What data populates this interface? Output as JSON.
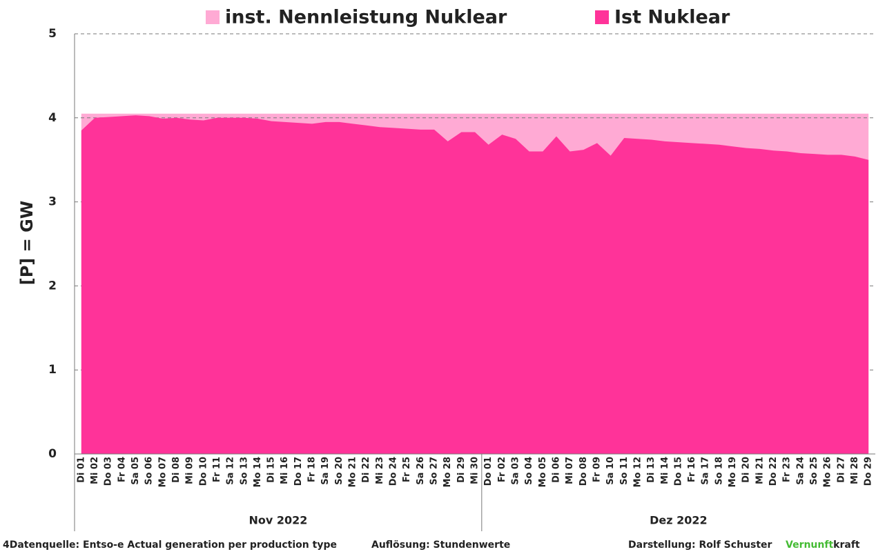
{
  "chart_data": {
    "type": "area",
    "y_label": "[P]  =  GW",
    "categories": [
      "Di 01",
      "Mi 02",
      "Do 03",
      "Fr 04",
      "Sa 05",
      "So 06",
      "Mo 07",
      "Di 08",
      "Mi 09",
      "Do 10",
      "Fr 11",
      "Sa 12",
      "So 13",
      "Mo 14",
      "Di 15",
      "Mi 16",
      "Do 17",
      "Fr 18",
      "Sa 19",
      "So 20",
      "Mo 21",
      "Di 22",
      "Mi 23",
      "Do 24",
      "Fr 25",
      "Sa 26",
      "So 27",
      "Mo 28",
      "Di 29",
      "Mi 30",
      "Do 01",
      "Fr 02",
      "Sa 03",
      "So 04",
      "Mo 05",
      "Di 06",
      "Mi 07",
      "Do 08",
      "Fr 09",
      "Sa 10",
      "So 11",
      "Mo 12",
      "Di 13",
      "Mi 14",
      "Do 15",
      "Fr 16",
      "Sa 17",
      "So 18",
      "Mo 19",
      "Di 20",
      "Mi 21",
      "Do 22",
      "Fr 23",
      "Sa 24",
      "So 25",
      "Mo 26",
      "Di 27",
      "Mi 28",
      "Do 29"
    ],
    "groups": [
      "Nov 2022",
      "Dez 2022"
    ],
    "series": [
      {
        "name": "inst. Nennleistung Nuklear",
        "color": "#ffaad4",
        "values": [
          4.05,
          4.05,
          4.05,
          4.05,
          4.05,
          4.05,
          4.05,
          4.05,
          4.05,
          4.05,
          4.05,
          4.05,
          4.05,
          4.05,
          4.05,
          4.05,
          4.05,
          4.05,
          4.05,
          4.05,
          4.05,
          4.05,
          4.05,
          4.05,
          4.05,
          4.05,
          4.05,
          4.05,
          4.05,
          4.05,
          4.05,
          4.05,
          4.05,
          4.05,
          4.05,
          4.05,
          4.05,
          4.05,
          4.05,
          4.05,
          4.05,
          4.05,
          4.05,
          4.05,
          4.05,
          4.05,
          4.05,
          4.05,
          4.05,
          4.05,
          4.05,
          4.05,
          4.05,
          4.05,
          4.05,
          4.05,
          4.05,
          4.05,
          4.05
        ]
      },
      {
        "name": "Ist Nuklear",
        "color": "#ff3399",
        "values": [
          3.85,
          4.0,
          4.01,
          4.02,
          4.03,
          4.02,
          3.99,
          4.0,
          3.98,
          3.97,
          4.0,
          4.0,
          4.0,
          3.99,
          3.96,
          3.95,
          3.94,
          3.93,
          3.95,
          3.95,
          3.93,
          3.91,
          3.89,
          3.88,
          3.87,
          3.86,
          3.86,
          3.72,
          3.83,
          3.83,
          3.68,
          3.8,
          3.75,
          3.6,
          3.6,
          3.78,
          3.6,
          3.62,
          3.7,
          3.55,
          3.76,
          3.75,
          3.74,
          3.72,
          3.71,
          3.7,
          3.69,
          3.68,
          3.66,
          3.64,
          3.63,
          3.61,
          3.6,
          3.58,
          3.57,
          3.56,
          3.56,
          3.54,
          3.5
        ]
      }
    ],
    "ylim": [
      0,
      5
    ],
    "yticks": [
      0,
      1,
      2,
      3,
      4,
      5
    ],
    "grid": true
  },
  "footer": {
    "source": "4Datenquelle: Entso-e  Actual generation per production type",
    "resolution": "Auflösung: Stundenwerte",
    "author": "Darstellung:  Rolf Schuster",
    "brand_1": "Vernunft",
    "brand_2": "kraft"
  }
}
